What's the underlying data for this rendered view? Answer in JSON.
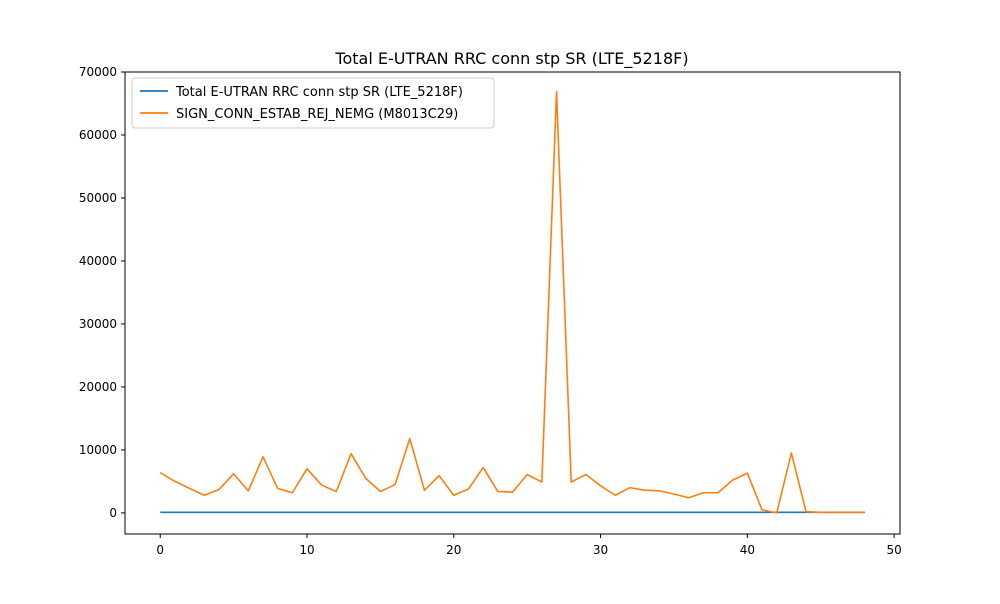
{
  "chart_data": {
    "type": "line",
    "title": "Total E-UTRAN RRC conn stp SR (LTE_5218F)",
    "xlabel": "",
    "ylabel": "",
    "xlim": [
      -2.4,
      50.4
    ],
    "ylim": [
      -3350,
      70000
    ],
    "x_ticks": [
      0,
      10,
      20,
      30,
      40,
      50
    ],
    "y_ticks": [
      0,
      10000,
      20000,
      30000,
      40000,
      50000,
      60000,
      70000
    ],
    "x_tick_labels": [
      "0",
      "10",
      "20",
      "30",
      "40",
      "50"
    ],
    "y_tick_labels": [
      "0",
      "10000",
      "20000",
      "30000",
      "40000",
      "50000",
      "60000",
      "70000"
    ],
    "grid": false,
    "legend_position": "top-left",
    "x": [
      0,
      1,
      2,
      3,
      4,
      5,
      6,
      7,
      8,
      9,
      10,
      11,
      12,
      13,
      14,
      15,
      16,
      17,
      18,
      19,
      20,
      21,
      22,
      23,
      24,
      25,
      26,
      27,
      28,
      29,
      30,
      31,
      32,
      33,
      34,
      35,
      36,
      37,
      38,
      39,
      40,
      41,
      42,
      43,
      44,
      45,
      46,
      47,
      48
    ],
    "series": [
      {
        "name": "Total E-UTRAN RRC conn stp SR (LTE_5218F)",
        "color": "#1f77b4",
        "values": [
          100,
          100,
          100,
          100,
          100,
          100,
          100,
          100,
          100,
          100,
          100,
          100,
          100,
          100,
          100,
          100,
          100,
          100,
          100,
          100,
          100,
          100,
          100,
          100,
          100,
          100,
          100,
          100,
          100,
          100,
          100,
          100,
          100,
          100,
          100,
          100,
          100,
          100,
          100,
          100,
          100,
          100,
          100,
          100,
          100,
          100,
          100,
          100,
          100
        ]
      },
      {
        "name": "SIGN_CONN_ESTAB_REJ_NEMG (M8013C29)",
        "color": "#ff7f0e",
        "values": [
          6400,
          5000,
          3900,
          2800,
          3700,
          6200,
          3500,
          8900,
          3900,
          3200,
          7000,
          4400,
          3400,
          9400,
          5500,
          3400,
          4500,
          11800,
          3600,
          5900,
          2800,
          3800,
          7200,
          3400,
          3300,
          6100,
          4900,
          66900,
          4900,
          6100,
          4300,
          2800,
          4000,
          3600,
          3500,
          3000,
          2400,
          3200,
          3200,
          5200,
          6300,
          500,
          0,
          9500,
          200,
          100,
          100,
          100,
          100
        ]
      }
    ]
  }
}
